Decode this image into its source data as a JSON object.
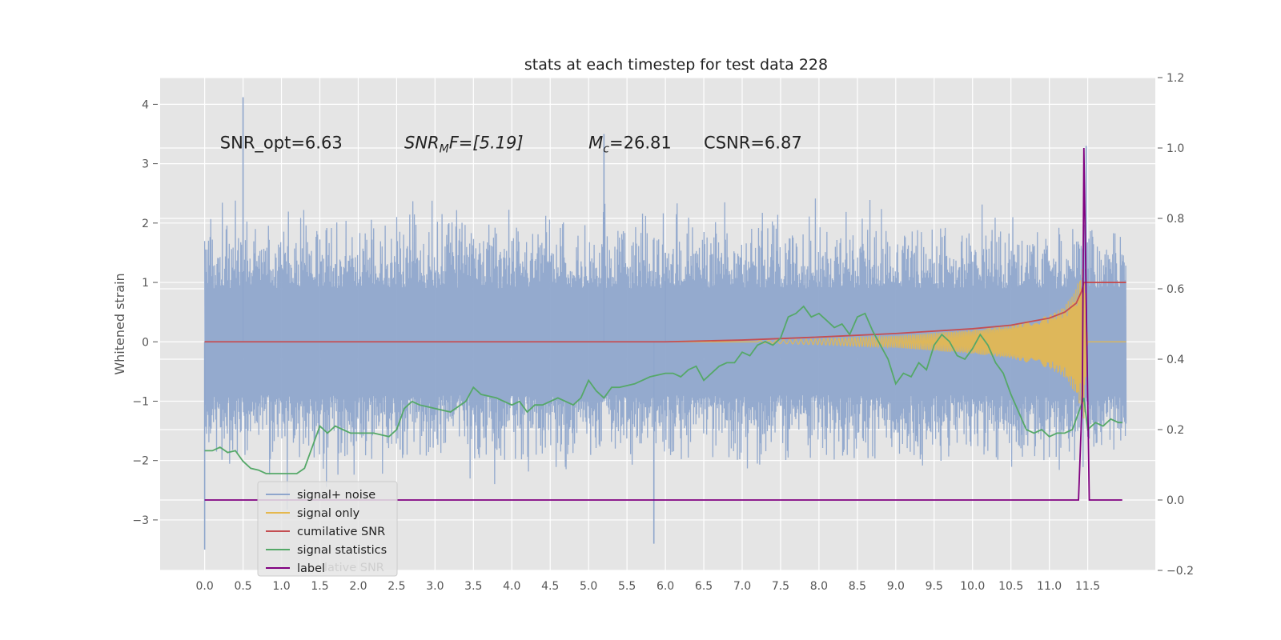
{
  "chart_data": {
    "type": "line",
    "title": "stats at each timestep for test data 228",
    "ylabel": "Whitened strain",
    "xlim": [
      -0.58,
      12.38
    ],
    "ylim": [
      -3.85,
      4.45
    ],
    "y2lim": [
      -0.2,
      1.2
    ],
    "x_ticks": [
      0.0,
      0.5,
      1.0,
      1.5,
      2.0,
      2.5,
      3.0,
      3.5,
      4.0,
      4.5,
      5.0,
      5.5,
      6.0,
      6.5,
      7.0,
      7.5,
      8.0,
      8.5,
      9.0,
      9.5,
      10.0,
      10.5,
      11.0,
      11.5
    ],
    "x_tick_labels": [
      "0.0",
      "0.5",
      "1.0",
      "1.5",
      "2.0",
      "2.5",
      "3.0",
      "3.5",
      "4.0",
      "4.5",
      "5.0",
      "5.5",
      "6.0",
      "6.5",
      "7.0",
      "7.5",
      "8.0",
      "8.5",
      "9.0",
      "9.5",
      "10.0",
      "10.5",
      "11.0",
      "11.5"
    ],
    "y_ticks": [
      -3,
      -2,
      -1,
      0,
      1,
      2,
      3,
      4
    ],
    "y_tick_labels": [
      "−3",
      "−2",
      "−1",
      "0",
      "1",
      "2",
      "3",
      "4"
    ],
    "y2_ticks": [
      -0.2,
      0.0,
      0.2,
      0.4,
      0.6,
      0.8,
      1.0,
      1.2
    ],
    "y2_tick_labels": [
      "−0.2",
      "0.0",
      "0.2",
      "0.4",
      "0.6",
      "0.8",
      "1.0",
      "1.2"
    ],
    "grid": true,
    "annotations": [
      {
        "text": "SNR_opt=6.63",
        "x": 0.2,
        "y": 3.35
      },
      {
        "prefix": "SNR",
        "sub": "M",
        "suffix": "F=[5.19]",
        "x": 2.6,
        "y": 3.35
      },
      {
        "prefix": "M",
        "sub": "c",
        "suffix": "=26.81",
        "x": 5.0,
        "y": 3.35
      },
      {
        "text": "CSNR=6.87",
        "x": 6.5,
        "y": 3.35
      }
    ],
    "legend": {
      "placement": "lower-left",
      "entries": [
        "signal+ noise",
        "signal only",
        "cumilative SNR",
        "signal statistics",
        "label"
      ],
      "hidden_text": "lative SNR"
    },
    "series": [
      {
        "name": "signal+ noise",
        "axis": "left",
        "color": "#8fa6cc",
        "noise_model": {
          "x_start": 0.0,
          "x_end": 12.0,
          "samples": 2400,
          "typical_min": -2.0,
          "typical_max": 2.2,
          "extreme_min": -3.5,
          "extreme_max": 4.12
        }
      },
      {
        "name": "signal only",
        "axis": "left",
        "color": "#e5b84e",
        "chirp_envelope": {
          "x": [
            7.2,
            8.0,
            9.0,
            10.0,
            10.5,
            11.0,
            11.2,
            11.35,
            11.45,
            11.5
          ],
          "amp": [
            0.02,
            0.05,
            0.1,
            0.2,
            0.28,
            0.45,
            0.6,
            0.9,
            1.3,
            0.0
          ]
        }
      },
      {
        "name": "cumilative SNR",
        "axis": "left",
        "color": "#c44e52",
        "x": [
          0.0,
          6.0,
          7.0,
          8.0,
          9.0,
          10.0,
          10.5,
          11.0,
          11.2,
          11.35,
          11.42,
          11.45,
          12.0
        ],
        "values": [
          0.0,
          0.0,
          0.03,
          0.08,
          0.14,
          0.22,
          0.28,
          0.4,
          0.5,
          0.65,
          0.85,
          1.0,
          1.0
        ]
      },
      {
        "name": "signal statistics",
        "axis": "right",
        "color": "#55a868",
        "x": [
          0.0,
          0.1,
          0.2,
          0.3,
          0.4,
          0.5,
          0.6,
          0.7,
          0.8,
          1.0,
          1.2,
          1.3,
          1.4,
          1.5,
          1.6,
          1.7,
          1.8,
          1.9,
          2.0,
          2.2,
          2.4,
          2.5,
          2.6,
          2.7,
          2.8,
          3.0,
          3.2,
          3.4,
          3.5,
          3.6,
          3.8,
          3.9,
          4.0,
          4.1,
          4.2,
          4.3,
          4.4,
          4.5,
          4.6,
          4.8,
          4.9,
          5.0,
          5.1,
          5.2,
          5.3,
          5.4,
          5.6,
          5.8,
          6.0,
          6.1,
          6.2,
          6.3,
          6.4,
          6.5,
          6.6,
          6.7,
          6.8,
          6.9,
          7.0,
          7.1,
          7.2,
          7.3,
          7.4,
          7.5,
          7.6,
          7.7,
          7.8,
          7.9,
          8.0,
          8.1,
          8.2,
          8.3,
          8.4,
          8.5,
          8.6,
          8.7,
          8.8,
          8.9,
          9.0,
          9.1,
          9.2,
          9.3,
          9.4,
          9.5,
          9.6,
          9.7,
          9.8,
          9.9,
          10.0,
          10.1,
          10.2,
          10.3,
          10.4,
          10.5,
          10.6,
          10.7,
          10.8,
          10.9,
          11.0,
          11.1,
          11.2,
          11.3,
          11.35,
          11.45,
          11.5,
          11.6,
          11.7,
          11.8,
          11.9,
          11.95
        ],
        "values": [
          0.14,
          0.14,
          0.15,
          0.135,
          0.14,
          0.11,
          0.09,
          0.085,
          0.075,
          0.075,
          0.075,
          0.09,
          0.15,
          0.21,
          0.19,
          0.21,
          0.2,
          0.19,
          0.19,
          0.19,
          0.18,
          0.2,
          0.26,
          0.28,
          0.27,
          0.26,
          0.25,
          0.28,
          0.32,
          0.3,
          0.29,
          0.28,
          0.27,
          0.28,
          0.25,
          0.27,
          0.27,
          0.28,
          0.29,
          0.27,
          0.29,
          0.34,
          0.31,
          0.29,
          0.32,
          0.32,
          0.33,
          0.35,
          0.36,
          0.36,
          0.35,
          0.37,
          0.38,
          0.34,
          0.36,
          0.38,
          0.39,
          0.39,
          0.42,
          0.41,
          0.44,
          0.45,
          0.44,
          0.46,
          0.52,
          0.53,
          0.55,
          0.52,
          0.53,
          0.51,
          0.49,
          0.5,
          0.47,
          0.52,
          0.53,
          0.48,
          0.44,
          0.4,
          0.33,
          0.36,
          0.35,
          0.39,
          0.37,
          0.44,
          0.47,
          0.45,
          0.41,
          0.4,
          0.43,
          0.47,
          0.44,
          0.39,
          0.36,
          0.3,
          0.25,
          0.2,
          0.19,
          0.2,
          0.18,
          0.19,
          0.19,
          0.2,
          0.23,
          0.29,
          0.2,
          0.22,
          0.21,
          0.23,
          0.22,
          0.22
        ]
      },
      {
        "name": "label",
        "axis": "right",
        "color": "#800080",
        "x": [
          0.0,
          11.38,
          11.43,
          11.45,
          11.52,
          11.55,
          11.95
        ],
        "values": [
          0.0,
          0.0,
          0.3,
          1.0,
          0.0,
          0.0,
          0.0
        ]
      }
    ]
  }
}
